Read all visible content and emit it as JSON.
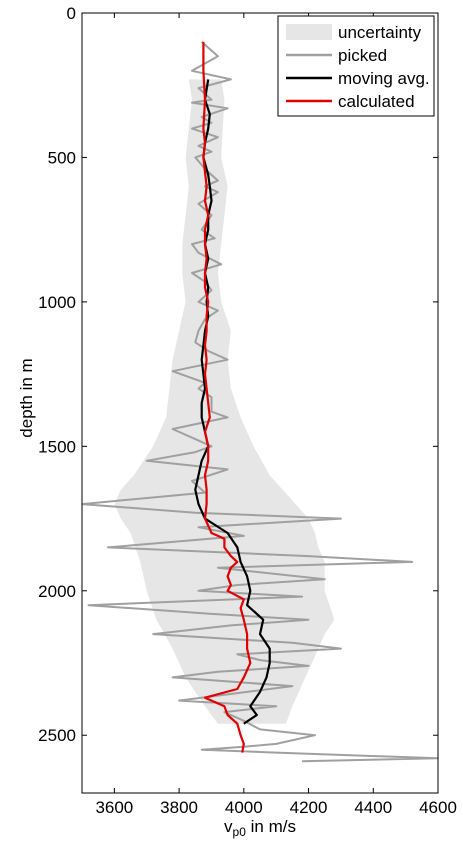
{
  "chart_data": {
    "type": "line",
    "title": "",
    "xlabel_main": "v",
    "xlabel_sub": "p0",
    "xlabel_rest": " in m/s",
    "ylabel": "depth in m",
    "xlim": [
      3500,
      4600
    ],
    "ylim": [
      0,
      2700
    ],
    "y_reversed": true,
    "grid": false,
    "legend_position": "top-right",
    "x_ticks": [
      {
        "value": 3600,
        "label": "3600"
      },
      {
        "value": 3800,
        "label": "3800"
      },
      {
        "value": 4000,
        "label": "4000"
      },
      {
        "value": 4200,
        "label": "4200"
      },
      {
        "value": 4400,
        "label": "4400"
      },
      {
        "value": 4600,
        "label": "4600"
      }
    ],
    "y_ticks": [
      {
        "value": 0,
        "label": "0"
      },
      {
        "value": 500,
        "label": "500"
      },
      {
        "value": 1000,
        "label": "1000"
      },
      {
        "value": 1500,
        "label": "1500"
      },
      {
        "value": 2000,
        "label": "2000"
      },
      {
        "value": 2500,
        "label": "2500"
      }
    ],
    "colors": {
      "uncertainty": "#e6e6e6",
      "picked": "#a0a0a0",
      "moving_avg": "#000000",
      "calculated": "#e00000"
    },
    "legend": [
      {
        "key": "uncertainty",
        "label": "uncertainty",
        "style": "patch"
      },
      {
        "key": "picked",
        "label": "picked",
        "style": "line"
      },
      {
        "key": "moving_avg",
        "label": "moving avg.",
        "style": "line"
      },
      {
        "key": "calculated",
        "label": "calculated",
        "style": "line"
      }
    ],
    "uncertainty": {
      "upper": [
        [
          230,
          3930
        ],
        [
          300,
          3940
        ],
        [
          400,
          3935
        ],
        [
          500,
          3930
        ],
        [
          600,
          3950
        ],
        [
          700,
          3940
        ],
        [
          800,
          3930
        ],
        [
          900,
          3920
        ],
        [
          1000,
          3930
        ],
        [
          1100,
          3960
        ],
        [
          1200,
          3950
        ],
        [
          1300,
          3960
        ],
        [
          1400,
          3990
        ],
        [
          1500,
          4030
        ],
        [
          1600,
          4080
        ],
        [
          1650,
          4120
        ],
        [
          1700,
          4160
        ],
        [
          1750,
          4200
        ],
        [
          1800,
          4220
        ],
        [
          1850,
          4230
        ],
        [
          1900,
          4250
        ],
        [
          2000,
          4250
        ],
        [
          2100,
          4280
        ],
        [
          2150,
          4250
        ],
        [
          2200,
          4230
        ],
        [
          2300,
          4190
        ],
        [
          2400,
          4150
        ],
        [
          2460,
          4130
        ]
      ],
      "lower": [
        [
          230,
          3830
        ],
        [
          300,
          3840
        ],
        [
          400,
          3830
        ],
        [
          500,
          3820
        ],
        [
          600,
          3830
        ],
        [
          700,
          3820
        ],
        [
          800,
          3810
        ],
        [
          900,
          3810
        ],
        [
          1000,
          3820
        ],
        [
          1100,
          3800
        ],
        [
          1200,
          3780
        ],
        [
          1300,
          3770
        ],
        [
          1400,
          3760
        ],
        [
          1500,
          3720
        ],
        [
          1600,
          3660
        ],
        [
          1650,
          3620
        ],
        [
          1700,
          3600
        ],
        [
          1750,
          3620
        ],
        [
          1800,
          3650
        ],
        [
          1900,
          3680
        ],
        [
          2000,
          3700
        ],
        [
          2100,
          3730
        ],
        [
          2200,
          3780
        ],
        [
          2300,
          3820
        ],
        [
          2400,
          3880
        ],
        [
          2460,
          3920
        ]
      ]
    },
    "series": [
      {
        "key": "picked",
        "name": "picked",
        "points": [
          [
            100,
            3870
          ],
          [
            150,
            3920
          ],
          [
            200,
            3840
          ],
          [
            230,
            3960
          ],
          [
            260,
            3860
          ],
          [
            280,
            3880
          ],
          [
            300,
            3900
          ],
          [
            310,
            3840
          ],
          [
            330,
            3950
          ],
          [
            360,
            3870
          ],
          [
            380,
            3900
          ],
          [
            400,
            3840
          ],
          [
            430,
            3920
          ],
          [
            460,
            3860
          ],
          [
            480,
            3900
          ],
          [
            500,
            3850
          ],
          [
            540,
            3880
          ],
          [
            580,
            3920
          ],
          [
            600,
            3880
          ],
          [
            620,
            3920
          ],
          [
            660,
            3860
          ],
          [
            700,
            3900
          ],
          [
            750,
            3870
          ],
          [
            780,
            3910
          ],
          [
            800,
            3840
          ],
          [
            830,
            3860
          ],
          [
            870,
            3930
          ],
          [
            900,
            3840
          ],
          [
            930,
            3880
          ],
          [
            960,
            3900
          ],
          [
            1000,
            3860
          ],
          [
            1030,
            3920
          ],
          [
            1060,
            3880
          ],
          [
            1100,
            3860
          ],
          [
            1140,
            3850
          ],
          [
            1170,
            3890
          ],
          [
            1200,
            3950
          ],
          [
            1240,
            3780
          ],
          [
            1280,
            3880
          ],
          [
            1300,
            3860
          ],
          [
            1330,
            3900
          ],
          [
            1380,
            3900
          ],
          [
            1400,
            3950
          ],
          [
            1440,
            3780
          ],
          [
            1500,
            3900
          ],
          [
            1520,
            3850
          ],
          [
            1550,
            3700
          ],
          [
            1580,
            3950
          ],
          [
            1620,
            3840
          ],
          [
            1660,
            3880
          ],
          [
            1700,
            3500
          ],
          [
            1730,
            3850
          ],
          [
            1750,
            4300
          ],
          [
            1780,
            3860
          ],
          [
            1810,
            4000
          ],
          [
            1850,
            3580
          ],
          [
            1880,
            4200
          ],
          [
            1900,
            4520
          ],
          [
            1920,
            3920
          ],
          [
            1960,
            4250
          ],
          [
            1980,
            3980
          ],
          [
            2000,
            3860
          ],
          [
            2020,
            4180
          ],
          [
            2050,
            3520
          ],
          [
            2080,
            3900
          ],
          [
            2100,
            4200
          ],
          [
            2120,
            3960
          ],
          [
            2150,
            3720
          ],
          [
            2180,
            4150
          ],
          [
            2200,
            4300
          ],
          [
            2220,
            3980
          ],
          [
            2240,
            4050
          ],
          [
            2260,
            4200
          ],
          [
            2280,
            3920
          ],
          [
            2300,
            3780
          ],
          [
            2330,
            4150
          ],
          [
            2350,
            4010
          ],
          [
            2380,
            3800
          ],
          [
            2400,
            4100
          ],
          [
            2420,
            3940
          ],
          [
            2450,
            4000
          ],
          [
            2480,
            4050
          ],
          [
            2500,
            4220
          ],
          [
            2530,
            4100
          ],
          [
            2540,
            4000
          ],
          [
            2550,
            3870
          ],
          [
            2560,
            4100
          ],
          [
            2580,
            4600
          ],
          [
            2590,
            4180
          ]
        ]
      },
      {
        "key": "moving_avg",
        "name": "moving avg.",
        "points": [
          [
            230,
            3890
          ],
          [
            300,
            3880
          ],
          [
            350,
            3895
          ],
          [
            400,
            3890
          ],
          [
            450,
            3880
          ],
          [
            500,
            3875
          ],
          [
            560,
            3890
          ],
          [
            600,
            3895
          ],
          [
            650,
            3900
          ],
          [
            700,
            3890
          ],
          [
            750,
            3890
          ],
          [
            800,
            3880
          ],
          [
            850,
            3890
          ],
          [
            900,
            3880
          ],
          [
            950,
            3890
          ],
          [
            1000,
            3885
          ],
          [
            1050,
            3890
          ],
          [
            1100,
            3880
          ],
          [
            1150,
            3875
          ],
          [
            1200,
            3870
          ],
          [
            1250,
            3875
          ],
          [
            1300,
            3880
          ],
          [
            1350,
            3870
          ],
          [
            1400,
            3870
          ],
          [
            1450,
            3880
          ],
          [
            1500,
            3890
          ],
          [
            1550,
            3870
          ],
          [
            1600,
            3860
          ],
          [
            1650,
            3850
          ],
          [
            1700,
            3860
          ],
          [
            1750,
            3880
          ],
          [
            1800,
            3950
          ],
          [
            1850,
            3980
          ],
          [
            1900,
            3990
          ],
          [
            1950,
            4010
          ],
          [
            2000,
            4020
          ],
          [
            2050,
            4010
          ],
          [
            2100,
            4060
          ],
          [
            2150,
            4050
          ],
          [
            2200,
            4080
          ],
          [
            2250,
            4080
          ],
          [
            2300,
            4070
          ],
          [
            2350,
            4050
          ],
          [
            2400,
            4020
          ],
          [
            2430,
            4040
          ],
          [
            2460,
            4000
          ]
        ]
      },
      {
        "key": "calculated",
        "name": "calculated",
        "points": [
          [
            100,
            3875
          ],
          [
            200,
            3875
          ],
          [
            300,
            3880
          ],
          [
            400,
            3875
          ],
          [
            450,
            3880
          ],
          [
            500,
            3875
          ],
          [
            550,
            3880
          ],
          [
            600,
            3885
          ],
          [
            650,
            3880
          ],
          [
            700,
            3890
          ],
          [
            750,
            3880
          ],
          [
            800,
            3880
          ],
          [
            850,
            3885
          ],
          [
            900,
            3880
          ],
          [
            950,
            3880
          ],
          [
            1000,
            3890
          ],
          [
            1050,
            3885
          ],
          [
            1100,
            3885
          ],
          [
            1150,
            3880
          ],
          [
            1200,
            3885
          ],
          [
            1250,
            3880
          ],
          [
            1300,
            3885
          ],
          [
            1350,
            3890
          ],
          [
            1400,
            3895
          ],
          [
            1450,
            3880
          ],
          [
            1500,
            3890
          ],
          [
            1550,
            3890
          ],
          [
            1600,
            3880
          ],
          [
            1650,
            3885
          ],
          [
            1700,
            3885
          ],
          [
            1750,
            3880
          ],
          [
            1800,
            3900
          ],
          [
            1820,
            3940
          ],
          [
            1850,
            3940
          ],
          [
            1880,
            3960
          ],
          [
            1900,
            3980
          ],
          [
            1920,
            3960
          ],
          [
            1950,
            3950
          ],
          [
            1980,
            3960
          ],
          [
            2000,
            3950
          ],
          [
            2030,
            4000
          ],
          [
            2060,
            3990
          ],
          [
            2100,
            4000
          ],
          [
            2150,
            4010
          ],
          [
            2200,
            4010
          ],
          [
            2250,
            4020
          ],
          [
            2300,
            4000
          ],
          [
            2340,
            3980
          ],
          [
            2370,
            3880
          ],
          [
            2400,
            3940
          ],
          [
            2430,
            3950
          ],
          [
            2460,
            3980
          ],
          [
            2500,
            3990
          ],
          [
            2530,
            4000
          ],
          [
            2560,
            3995
          ]
        ]
      }
    ]
  }
}
